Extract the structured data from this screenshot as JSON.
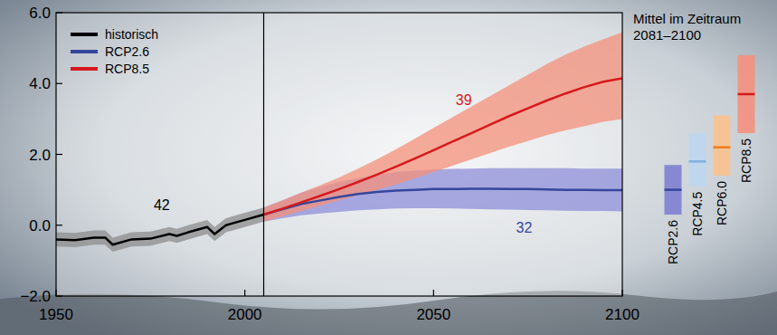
{
  "chart_data": {
    "type": "line",
    "xlim": [
      1950,
      2100
    ],
    "ylim": [
      -2,
      6
    ],
    "xticks": [
      1950,
      2000,
      2050,
      2100
    ],
    "yticks": [
      {
        "value": -2,
        "label": "−2.0"
      },
      {
        "value": 0,
        "label": "0.0"
      },
      {
        "value": 2,
        "label": "2.0"
      },
      {
        "value": 4,
        "label": "4.0"
      },
      {
        "value": 6,
        "label": "6.0"
      }
    ],
    "grid": false,
    "legend": "upper left",
    "series": [
      {
        "name": "historisch",
        "color": "#000000",
        "band_color": "#8c8c8c",
        "x": [
          1950,
          1955,
          1960,
          1963,
          1965,
          1970,
          1975,
          1980,
          1982,
          1985,
          1990,
          1992,
          1995,
          2000,
          2005
        ],
        "values": [
          -0.4,
          -0.42,
          -0.35,
          -0.35,
          -0.55,
          -0.4,
          -0.38,
          -0.25,
          -0.3,
          -0.2,
          -0.05,
          -0.25,
          0.0,
          0.15,
          0.3
        ],
        "lower": [
          -0.6,
          -0.62,
          -0.55,
          -0.55,
          -0.75,
          -0.6,
          -0.58,
          -0.45,
          -0.5,
          -0.4,
          -0.25,
          -0.45,
          -0.2,
          -0.05,
          0.1
        ],
        "upper": [
          -0.2,
          -0.22,
          -0.15,
          -0.15,
          -0.35,
          -0.2,
          -0.18,
          -0.05,
          -0.1,
          0.0,
          0.15,
          -0.05,
          0.2,
          0.35,
          0.5
        ]
      },
      {
        "name": "RCP2.6",
        "color": "#35479c",
        "band_color": "#8f8fda",
        "x": [
          2005,
          2010,
          2015,
          2020,
          2025,
          2030,
          2035,
          2040,
          2045,
          2050,
          2055,
          2060,
          2065,
          2070,
          2075,
          2080,
          2085,
          2090,
          2095,
          2100
        ],
        "values": [
          0.3,
          0.45,
          0.6,
          0.7,
          0.8,
          0.88,
          0.94,
          0.98,
          1.0,
          1.02,
          1.02,
          1.03,
          1.03,
          1.02,
          1.02,
          1.01,
          1.0,
          1.0,
          0.99,
          0.99
        ],
        "lower": [
          0.1,
          0.2,
          0.28,
          0.33,
          0.38,
          0.42,
          0.45,
          0.47,
          0.48,
          0.48,
          0.47,
          0.46,
          0.45,
          0.44,
          0.43,
          0.42,
          0.41,
          0.4,
          0.4,
          0.39
        ],
        "upper": [
          0.5,
          0.7,
          0.92,
          1.08,
          1.22,
          1.33,
          1.42,
          1.5,
          1.54,
          1.57,
          1.59,
          1.6,
          1.61,
          1.61,
          1.61,
          1.61,
          1.61,
          1.6,
          1.6,
          1.6
        ]
      },
      {
        "name": "RCP8.5",
        "color": "#d7191c",
        "band_color": "#f4907a",
        "x": [
          2005,
          2010,
          2015,
          2020,
          2025,
          2030,
          2035,
          2040,
          2045,
          2050,
          2055,
          2060,
          2065,
          2070,
          2075,
          2080,
          2085,
          2090,
          2095,
          2100
        ],
        "values": [
          0.3,
          0.47,
          0.65,
          0.83,
          1.02,
          1.22,
          1.43,
          1.65,
          1.88,
          2.12,
          2.36,
          2.6,
          2.84,
          3.08,
          3.3,
          3.52,
          3.72,
          3.9,
          4.05,
          4.15
        ],
        "lower": [
          0.1,
          0.25,
          0.4,
          0.55,
          0.7,
          0.85,
          1.0,
          1.15,
          1.32,
          1.5,
          1.68,
          1.86,
          2.04,
          2.22,
          2.38,
          2.54,
          2.68,
          2.8,
          2.92,
          3.0
        ],
        "upper": [
          0.5,
          0.7,
          0.92,
          1.13,
          1.35,
          1.6,
          1.86,
          2.14,
          2.44,
          2.75,
          3.05,
          3.35,
          3.65,
          3.95,
          4.25,
          4.55,
          4.82,
          5.05,
          5.25,
          5.45
        ]
      }
    ],
    "annotations": [
      {
        "text": "42",
        "x": 1978,
        "y": 0.43,
        "color": "#000000"
      },
      {
        "text": "39",
        "x": 2058,
        "y": 3.4,
        "color": "#d7191c"
      },
      {
        "text": "32",
        "x": 2074,
        "y": -0.2,
        "color": "#35479c"
      }
    ],
    "period_means": {
      "title_lines": [
        "Mittel im Zeitraum",
        "2081–2100"
      ],
      "items": [
        {
          "name": "RCP2.6",
          "color": "#8080d0",
          "mean_color": "#35479c",
          "mean": 1.0,
          "low": 0.3,
          "high": 1.7
        },
        {
          "name": "RCP4.5",
          "color": "#bcd6ee",
          "mean_color": "#7fb0e0",
          "mean": 1.8,
          "low": 1.1,
          "high": 2.6
        },
        {
          "name": "RCP6.0",
          "color": "#f8c28f",
          "mean_color": "#ee7d1e",
          "mean": 2.2,
          "low": 1.4,
          "high": 3.1
        },
        {
          "name": "RCP8.5",
          "color": "#f49080",
          "mean_color": "#d7191c",
          "mean": 3.7,
          "low": 2.6,
          "high": 4.8
        }
      ]
    }
  }
}
